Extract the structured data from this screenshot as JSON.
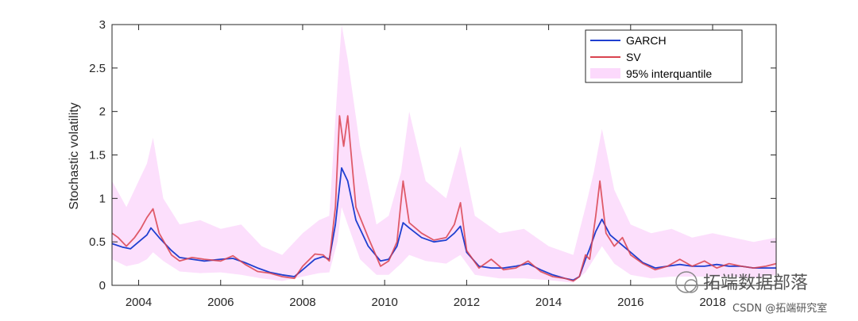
{
  "chart_data": {
    "type": "line",
    "title": "",
    "xlabel": "",
    "ylabel": "Stochastic volatility",
    "xlim": [
      2003.35,
      2019.55
    ],
    "ylim": [
      0,
      3
    ],
    "x_ticks": [
      "2004",
      "2006",
      "2008",
      "2010",
      "2012",
      "2014",
      "2016",
      "2018"
    ],
    "y_ticks": [
      "0",
      "0.5",
      "1",
      "1.5",
      "2",
      "2.5",
      "3"
    ],
    "grid": false,
    "legend_position": "top-right",
    "series": [
      {
        "name": "GARCH",
        "color": "#1f3fd0",
        "x": [
          2003.35,
          2003.6,
          2003.8,
          2004.0,
          2004.2,
          2004.3,
          2004.5,
          2004.8,
          2005.0,
          2005.3,
          2005.6,
          2006.0,
          2006.3,
          2006.6,
          2006.9,
          2007.2,
          2007.5,
          2007.8,
          2008.0,
          2008.3,
          2008.5,
          2008.65,
          2008.8,
          2008.95,
          2009.1,
          2009.3,
          2009.6,
          2009.9,
          2010.1,
          2010.3,
          2010.45,
          2010.6,
          2010.9,
          2011.2,
          2011.5,
          2011.7,
          2011.85,
          2012.0,
          2012.3,
          2012.6,
          2012.9,
          2013.2,
          2013.5,
          2013.8,
          2014.1,
          2014.4,
          2014.6,
          2014.75,
          2014.9,
          2015.0,
          2015.15,
          2015.3,
          2015.5,
          2015.7,
          2016.0,
          2016.3,
          2016.6,
          2016.9,
          2017.2,
          2017.5,
          2017.8,
          2018.1,
          2018.4,
          2018.7,
          2019.0,
          2019.3,
          2019.55
        ],
        "values": [
          0.48,
          0.44,
          0.42,
          0.5,
          0.58,
          0.66,
          0.55,
          0.4,
          0.32,
          0.3,
          0.28,
          0.3,
          0.31,
          0.26,
          0.2,
          0.15,
          0.12,
          0.1,
          0.18,
          0.3,
          0.33,
          0.3,
          0.7,
          1.35,
          1.2,
          0.75,
          0.45,
          0.28,
          0.3,
          0.45,
          0.72,
          0.66,
          0.55,
          0.5,
          0.52,
          0.6,
          0.68,
          0.38,
          0.22,
          0.2,
          0.2,
          0.22,
          0.25,
          0.18,
          0.12,
          0.08,
          0.06,
          0.1,
          0.3,
          0.42,
          0.62,
          0.76,
          0.58,
          0.5,
          0.38,
          0.26,
          0.2,
          0.22,
          0.24,
          0.22,
          0.22,
          0.24,
          0.22,
          0.22,
          0.2,
          0.2,
          0.2
        ]
      },
      {
        "name": "SV",
        "color": "#d9434f",
        "x": [
          2003.35,
          2003.5,
          2003.7,
          2003.9,
          2004.05,
          2004.2,
          2004.35,
          2004.5,
          2004.8,
          2005.0,
          2005.3,
          2005.6,
          2006.0,
          2006.3,
          2006.6,
          2006.9,
          2007.2,
          2007.5,
          2007.8,
          2008.0,
          2008.3,
          2008.5,
          2008.65,
          2008.8,
          2008.9,
          2009.0,
          2009.1,
          2009.3,
          2009.6,
          2009.9,
          2010.1,
          2010.3,
          2010.45,
          2010.6,
          2010.9,
          2011.2,
          2011.5,
          2011.7,
          2011.85,
          2012.0,
          2012.3,
          2012.6,
          2012.9,
          2013.2,
          2013.5,
          2013.8,
          2014.1,
          2014.4,
          2014.6,
          2014.75,
          2014.9,
          2015.0,
          2015.15,
          2015.25,
          2015.4,
          2015.6,
          2015.8,
          2016.0,
          2016.3,
          2016.6,
          2016.9,
          2017.2,
          2017.5,
          2017.8,
          2018.1,
          2018.4,
          2018.7,
          2019.0,
          2019.3,
          2019.55
        ],
        "values": [
          0.6,
          0.55,
          0.45,
          0.55,
          0.65,
          0.78,
          0.88,
          0.6,
          0.35,
          0.28,
          0.32,
          0.3,
          0.28,
          0.34,
          0.24,
          0.16,
          0.14,
          0.1,
          0.08,
          0.22,
          0.36,
          0.35,
          0.28,
          0.9,
          1.95,
          1.6,
          1.95,
          0.9,
          0.55,
          0.22,
          0.28,
          0.5,
          1.2,
          0.72,
          0.6,
          0.52,
          0.55,
          0.7,
          0.95,
          0.4,
          0.2,
          0.3,
          0.18,
          0.2,
          0.28,
          0.16,
          0.1,
          0.08,
          0.05,
          0.1,
          0.35,
          0.3,
          0.8,
          1.2,
          0.6,
          0.45,
          0.55,
          0.35,
          0.25,
          0.18,
          0.22,
          0.3,
          0.22,
          0.28,
          0.2,
          0.25,
          0.22,
          0.2,
          0.22,
          0.25
        ]
      }
    ],
    "band": {
      "name": "95% interquantile",
      "color": "#fcd9fc",
      "x": [
        2003.35,
        2003.7,
        2004.0,
        2004.2,
        2004.35,
        2004.6,
        2005.0,
        2005.5,
        2006.0,
        2006.5,
        2007.0,
        2007.5,
        2008.0,
        2008.4,
        2008.65,
        2008.85,
        2008.95,
        2009.1,
        2009.4,
        2009.8,
        2010.1,
        2010.4,
        2010.6,
        2011.0,
        2011.5,
        2011.85,
        2012.2,
        2012.8,
        2013.4,
        2014.0,
        2014.6,
        2014.9,
        2015.1,
        2015.3,
        2015.6,
        2016.0,
        2016.5,
        2017.0,
        2017.5,
        2018.0,
        2018.5,
        2019.0,
        2019.55
      ],
      "lower": [
        0.3,
        0.22,
        0.25,
        0.3,
        0.38,
        0.28,
        0.16,
        0.14,
        0.15,
        0.12,
        0.08,
        0.05,
        0.1,
        0.14,
        0.15,
        0.5,
        0.9,
        0.7,
        0.3,
        0.12,
        0.12,
        0.25,
        0.35,
        0.28,
        0.25,
        0.35,
        0.12,
        0.08,
        0.08,
        0.06,
        0.03,
        0.15,
        0.3,
        0.45,
        0.25,
        0.12,
        0.08,
        0.1,
        0.1,
        0.1,
        0.1,
        0.08,
        0.12
      ],
      "upper": [
        1.2,
        0.9,
        1.2,
        1.4,
        1.7,
        1.0,
        0.7,
        0.75,
        0.65,
        0.7,
        0.45,
        0.35,
        0.6,
        0.75,
        0.8,
        2.3,
        3.1,
        2.6,
        1.6,
        0.7,
        0.8,
        1.3,
        2.0,
        1.2,
        1.0,
        1.6,
        0.8,
        0.6,
        0.65,
        0.45,
        0.35,
        0.9,
        1.3,
        1.8,
        1.1,
        0.7,
        0.6,
        0.65,
        0.55,
        0.6,
        0.55,
        0.5,
        0.55
      ]
    }
  },
  "watermark": {
    "brand": "拓端数据部落",
    "credit": "CSDN @拓端研究室"
  }
}
